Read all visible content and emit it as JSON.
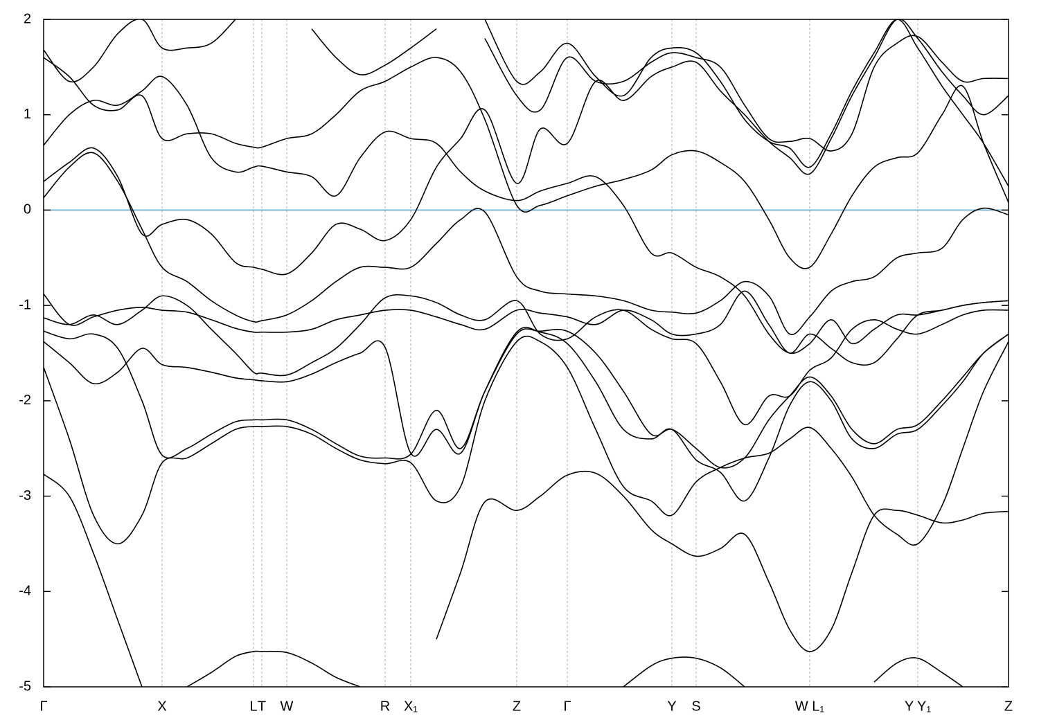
{
  "chart_data": {
    "type": "line",
    "x": [
      0,
      0.037,
      0.072,
      0.107,
      0.142,
      0.171,
      0.207,
      0.242,
      0.277,
      0.303,
      0.315,
      0.351,
      0.387,
      0.422,
      0.457,
      0.493,
      0.53,
      0.567,
      0.602,
      0.637,
      0.683,
      0.717,
      0.756,
      0.797,
      0.837,
      0.877,
      0.907,
      0.942,
      0.977,
      1.012,
      1.047,
      1.077,
      1.106,
      1.137,
      1.167,
      1.199,
      1.232,
      1.262,
      1.297,
      1.327,
      1.357,
      1.393
    ],
    "xlim": [
      0,
      1.393
    ],
    "xticks": [
      {
        "value": 0,
        "label": "Γ"
      },
      {
        "value": 0.171,
        "label": "X"
      },
      {
        "value": 0.303,
        "label": "L"
      },
      {
        "value": 0.315,
        "label": "T"
      },
      {
        "value": 0.351,
        "label": "W"
      },
      {
        "value": 0.493,
        "label": "R"
      },
      {
        "value": 0.53,
        "label": "X₁"
      },
      {
        "value": 0.683,
        "label": "Z"
      },
      {
        "value": 0.756,
        "label": "Γ"
      },
      {
        "value": 0.907,
        "label": "Y"
      },
      {
        "value": 0.942,
        "label": "S"
      },
      {
        "value": 1.106,
        "label": "W L₁"
      },
      {
        "value": 1.262,
        "label": "Y Y₁"
      },
      {
        "value": 1.393,
        "label": "Z"
      }
    ],
    "ylim": [
      -5,
      2
    ],
    "yticks": [
      -5,
      -4,
      -3,
      -2,
      -1,
      0,
      1,
      2
    ],
    "grid": "x",
    "reference_line": {
      "y": 0,
      "color": "#4fa3c6"
    },
    "series": [
      {
        "color": "#000000",
        "values": [
          null,
          null,
          null,
          null,
          null,
          null,
          null,
          null,
          null,
          null,
          null,
          null,
          null,
          null,
          null,
          null,
          null,
          null,
          null,
          null,
          null,
          null,
          null,
          null,
          -5.0,
          -4.78,
          -4.7,
          -4.7,
          -4.8,
          -5.0,
          null,
          null,
          null,
          null,
          null,
          -4.95,
          -4.75,
          -4.7,
          -4.85,
          -5.0,
          null,
          null
        ]
      },
      {
        "color": "#000000",
        "values": [
          -2.77,
          -3.0,
          -3.6,
          -4.3,
          -5.0,
          null,
          -5.0,
          -4.85,
          -4.68,
          -4.63,
          -4.63,
          -4.64,
          -4.75,
          -4.9,
          -5.0,
          null,
          null,
          -4.5,
          -3.8,
          -3.06,
          -3.15,
          -3.0,
          -2.78,
          -2.76,
          -3.0,
          -3.35,
          -3.5,
          -3.63,
          -3.55,
          -3.4,
          -3.9,
          -4.4,
          -4.63,
          -4.4,
          -3.8,
          -3.2,
          -3.15,
          -3.2,
          -3.28,
          -3.25,
          -3.18,
          -3.16
        ]
      },
      {
        "color": "#000000",
        "values": [
          -1.65,
          -2.4,
          -3.2,
          -3.5,
          -3.2,
          -2.65,
          -2.6,
          -2.45,
          -2.3,
          -2.27,
          -2.27,
          -2.27,
          -2.35,
          -2.5,
          -2.62,
          -2.66,
          -2.65,
          -3.05,
          -2.9,
          -2.0,
          -1.38,
          -1.38,
          -1.65,
          -2.3,
          -2.9,
          -3.05,
          -3.2,
          -2.85,
          -2.7,
          -2.6,
          -2.55,
          -2.4,
          -2.28,
          -2.5,
          -2.8,
          -3.2,
          -3.4,
          -3.5,
          -3.1,
          -2.5,
          -1.9,
          -1.38
        ]
      },
      {
        "color": "#000000",
        "values": [
          -1.38,
          -1.6,
          -1.82,
          -1.7,
          -1.45,
          -1.62,
          -1.65,
          -1.7,
          -1.76,
          -1.78,
          -1.79,
          -1.8,
          -1.72,
          -1.6,
          -1.5,
          -1.44,
          -2.55,
          -2.3,
          -2.55,
          -1.9,
          -1.28,
          -1.28,
          -1.4,
          -1.8,
          -2.3,
          -2.4,
          -2.3,
          -2.62,
          -2.75,
          -3.05,
          -2.6,
          -2.05,
          -1.8,
          -2.0,
          -2.4,
          -2.5,
          -2.35,
          -2.3,
          -2.05,
          -1.8,
          -1.5,
          -1.3
        ]
      },
      {
        "color": "#000000",
        "values": [
          -1.27,
          -1.35,
          -1.3,
          -1.45,
          -2.0,
          -2.57,
          -2.5,
          -2.35,
          -2.22,
          -2.2,
          -2.2,
          -2.2,
          -2.3,
          -2.45,
          -2.58,
          -2.6,
          -2.56,
          -2.1,
          -2.5,
          -1.9,
          -1.3,
          -1.27,
          -1.27,
          -1.5,
          -1.9,
          -2.35,
          -2.3,
          -2.5,
          -2.7,
          -2.6,
          -2.2,
          -1.95,
          -1.75,
          -1.95,
          -2.3,
          -2.45,
          -2.3,
          -2.25,
          -2.0,
          -1.75,
          -1.5,
          -1.3
        ]
      },
      {
        "color": "#000000",
        "values": [
          -1.13,
          -1.2,
          -1.1,
          -1.2,
          -1.05,
          -0.9,
          -1.0,
          -1.25,
          -1.5,
          -1.7,
          -1.71,
          -1.73,
          -1.6,
          -1.45,
          -1.2,
          -0.92,
          -0.9,
          -0.97,
          -1.1,
          -1.15,
          -0.95,
          -1.3,
          -1.35,
          -1.12,
          -1.05,
          -1.25,
          -1.35,
          -1.4,
          -1.8,
          -2.25,
          -1.95,
          -1.95,
          -1.68,
          -1.55,
          -1.25,
          -1.15,
          -1.25,
          -1.3,
          -1.2,
          -1.1,
          -1.05,
          -1.05
        ]
      },
      {
        "color": "#000000",
        "values": [
          -0.88,
          -1.2,
          -1.12,
          -1.05,
          -1.02,
          -1.05,
          -1.07,
          -1.15,
          -1.24,
          -1.28,
          -1.28,
          -1.28,
          -1.25,
          -1.15,
          -1.1,
          -1.05,
          -1.05,
          -1.12,
          -1.2,
          -1.25,
          -1.05,
          -1.08,
          -1.12,
          -1.2,
          -1.05,
          -1.15,
          -1.3,
          -1.3,
          -1.2,
          -0.85,
          -1.2,
          -1.5,
          -1.3,
          -1.45,
          -1.6,
          -1.6,
          -1.35,
          -1.1,
          -1.05,
          -1.0,
          -0.97,
          -0.95
        ]
      },
      {
        "color": "#000000",
        "values": [
          0.13,
          0.45,
          0.6,
          0.3,
          -0.2,
          -0.6,
          -0.75,
          -0.95,
          -1.1,
          -1.17,
          -1.16,
          -1.1,
          -0.95,
          -0.75,
          -0.6,
          -0.6,
          -0.6,
          -0.35,
          -0.1,
          -0.02,
          -0.7,
          -0.85,
          -0.88,
          -0.9,
          -0.95,
          -1.05,
          -1.07,
          -1.08,
          -0.95,
          -0.75,
          -0.9,
          -1.3,
          -1.12,
          -0.85,
          -0.75,
          -0.7,
          -0.5,
          -0.45,
          -0.4,
          -0.1,
          0.02,
          -0.05
        ]
      },
      {
        "color": "#000000",
        "values": [
          0.3,
          0.5,
          0.65,
          0.35,
          -0.25,
          -0.15,
          -0.1,
          -0.25,
          -0.55,
          -0.6,
          -0.62,
          -0.67,
          -0.45,
          -0.15,
          -0.2,
          -0.32,
          -0.1,
          0.45,
          0.75,
          1.05,
          0.28,
          0.85,
          0.7,
          1.35,
          1.15,
          1.4,
          1.5,
          1.55,
          1.25,
          1.0,
          0.72,
          0.55,
          0.38,
          0.75,
          1.2,
          1.6,
          2.0,
          1.8,
          1.45,
          1.2,
          1.0,
          1.2
        ]
      },
      {
        "color": "#000000",
        "values": [
          0.68,
          1.0,
          1.15,
          1.1,
          1.25,
          1.4,
          1.1,
          0.55,
          0.4,
          0.45,
          0.46,
          0.4,
          0.35,
          0.15,
          0.55,
          0.82,
          0.75,
          0.7,
          0.4,
          0.2,
          0.1,
          0.2,
          0.28,
          0.35,
          0.05,
          -0.45,
          -0.45,
          -0.6,
          -0.7,
          -0.9,
          -1.3,
          -1.5,
          -1.4,
          -1.15,
          -1.4,
          -1.25,
          -1.1,
          -1.1,
          -1.05,
          -1.0,
          -0.97,
          -0.95
        ]
      },
      {
        "color": "#000000",
        "values": [
          1.6,
          1.4,
          1.1,
          1.05,
          1.2,
          0.75,
          0.8,
          0.8,
          0.7,
          0.66,
          0.66,
          0.75,
          0.8,
          1.0,
          1.25,
          1.35,
          1.5,
          1.6,
          1.45,
          0.95,
          0.05,
          0.05,
          0.15,
          0.25,
          0.32,
          0.42,
          0.58,
          0.62,
          0.5,
          0.3,
          -0.1,
          -0.5,
          -0.6,
          -0.25,
          0.15,
          0.45,
          0.55,
          0.6,
          1.0,
          1.3,
          0.7,
          0.08
        ]
      },
      {
        "color": "#000000",
        "values": [
          1.68,
          1.35,
          1.5,
          1.85,
          2.0,
          1.7,
          1.7,
          1.75,
          2.0,
          null,
          null,
          null,
          1.9,
          1.6,
          1.42,
          1.52,
          1.7,
          1.9,
          null,
          1.8,
          1.2,
          1.05,
          1.6,
          1.35,
          1.35,
          1.55,
          1.65,
          1.6,
          1.5,
          1.1,
          0.75,
          0.72,
          0.75,
          0.62,
          0.8,
          1.5,
          1.75,
          1.82,
          1.55,
          1.35,
          1.38,
          1.38
        ]
      },
      {
        "color": "#000000",
        "values": [
          null,
          null,
          null,
          null,
          null,
          null,
          null,
          null,
          null,
          null,
          null,
          null,
          null,
          null,
          null,
          null,
          null,
          null,
          null,
          2.0,
          1.35,
          1.45,
          1.75,
          1.4,
          1.2,
          1.6,
          1.7,
          1.65,
          1.35,
          0.95,
          0.72,
          0.65,
          0.45,
          0.8,
          1.25,
          1.65,
          2.0,
          1.7,
          1.3,
          1.0,
          0.7,
          0.25
        ]
      }
    ]
  }
}
